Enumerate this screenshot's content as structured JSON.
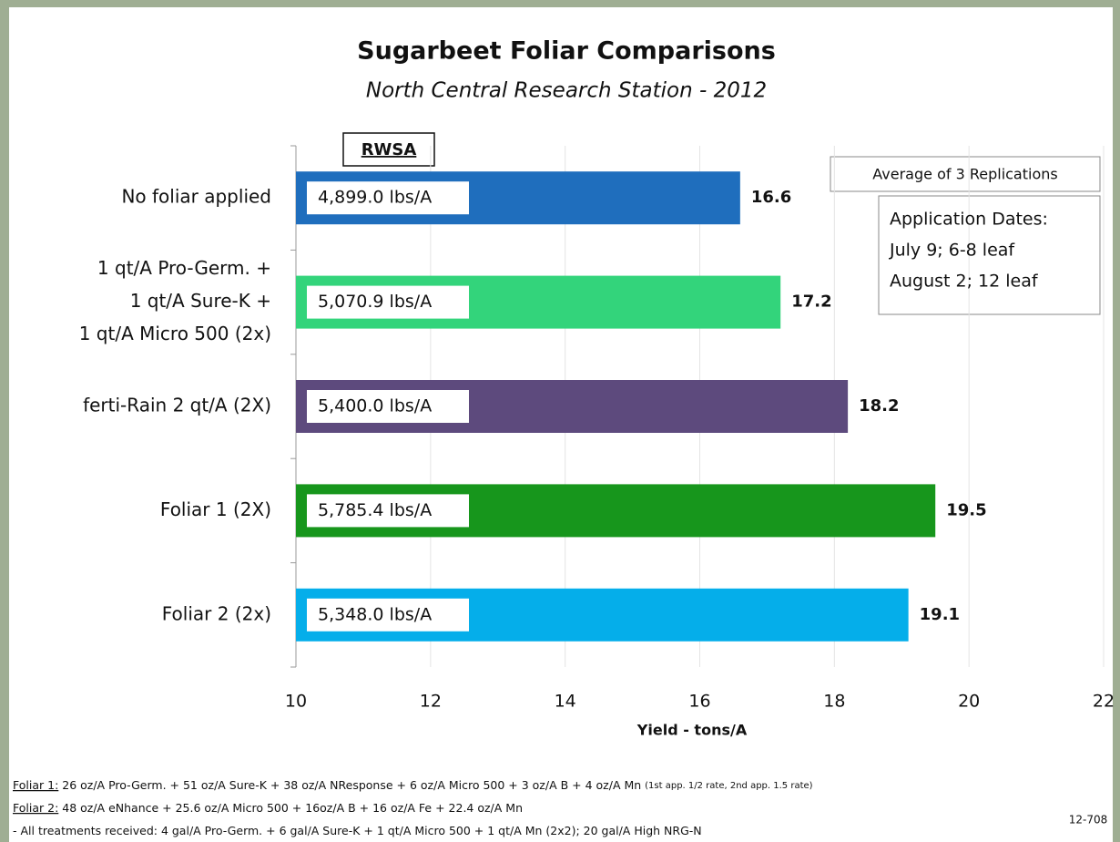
{
  "chart_data": {
    "type": "barh",
    "title": "Sugarbeet Foliar Comparisons",
    "subtitle": "North Central Research Station - 2012",
    "xlabel": "Yield - tons/A",
    "categories": [
      [
        "No foliar applied"
      ],
      [
        "1 qt/A Pro-Germ. +",
        "1 qt/A Sure-K +",
        "1 qt/A Micro 500 (2x)"
      ],
      [
        "ferti-Rain 2 qt/A (2X)"
      ],
      [
        "Foliar 1  (2X)"
      ],
      [
        "Foliar 2 (2x)"
      ]
    ],
    "values": [
      16.6,
      17.2,
      18.2,
      19.5,
      19.1
    ],
    "colors": [
      "#1f6ebd",
      "#33d47b",
      "#5d4a7d",
      "#17961c",
      "#05aeea"
    ],
    "rwsa": {
      "label": "RWSA",
      "value_labels": [
        "4,899.0 lbs/A",
        "5,070.9 lbs/A",
        "5,400.0 lbs/A",
        "5,785.4 lbs/A",
        "5,348.0 lbs/A"
      ]
    },
    "xlim": [
      10,
      22
    ],
    "xticks": [
      10,
      12,
      14,
      16,
      18,
      20,
      22
    ],
    "grid": true,
    "notes": {
      "replications": "Average of 3 Replications",
      "dates": [
        "Application Dates:",
        "July 9; 6-8 leaf",
        "August 2; 12 leaf"
      ]
    },
    "footnotes": [
      {
        "label": "Foliar 1:",
        "text": " 26 oz/A Pro-Germ. + 51 oz/A Sure-K + 38 oz/A NResponse + 6 oz/A Micro 500 + 3 oz/A B + 4 oz/A Mn ",
        "note": "(1st app. 1/2 rate, 2nd app. 1.5 rate)"
      },
      {
        "label": "Foliar 2:",
        "text": " 48 oz/A eNhance + 25.6 oz/A Micro 500 + 16oz/A B + 16 oz/A Fe + 22.4 oz/A Mn"
      },
      {
        "text": "- All treatments received: 4 gal/A Pro-Germ. + 6 gal/A Sure-K + 1 qt/A Micro 500 + 1 qt/A Mn (2x2); 20 gal/A High NRG-N"
      }
    ],
    "code": "12-708"
  }
}
